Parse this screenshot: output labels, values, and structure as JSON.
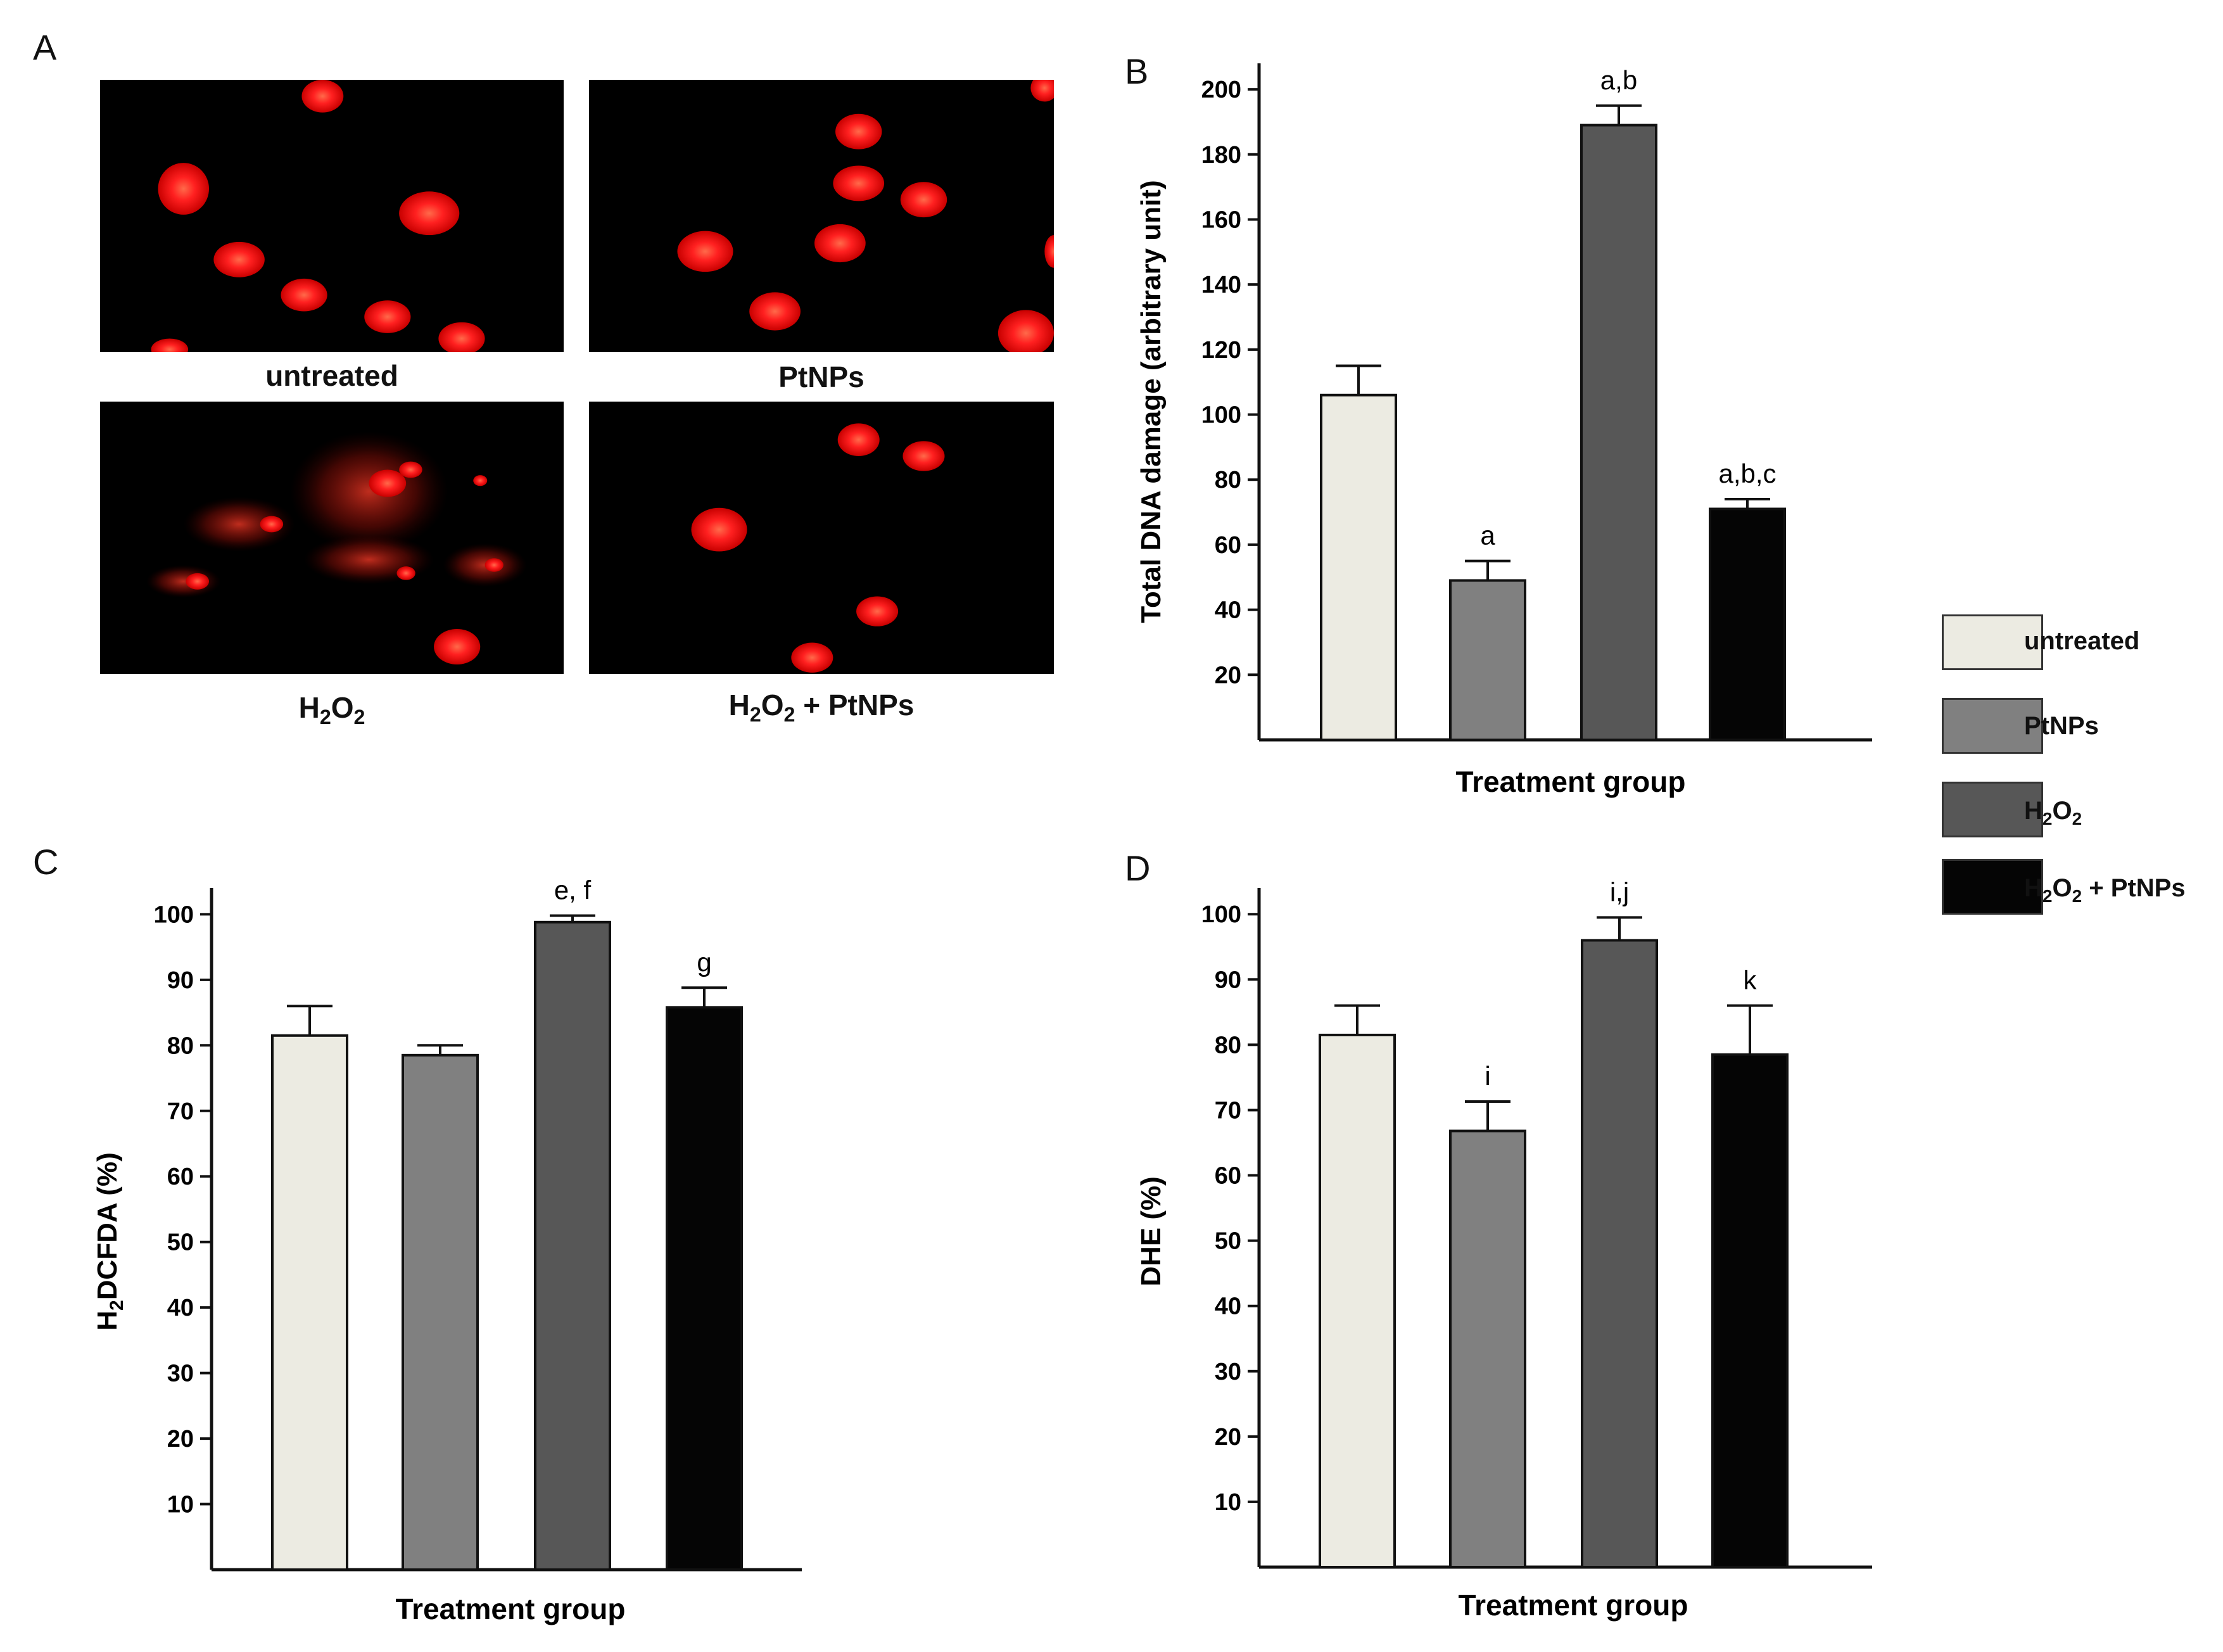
{
  "panels": {
    "A": "A",
    "B": "B",
    "C": "C",
    "D": "D"
  },
  "micrographs": [
    {
      "label": "untreated"
    },
    {
      "label": "PtNPs"
    },
    {
      "label_parts": [
        "H",
        "2",
        "O",
        "2"
      ]
    },
    {
      "label_parts": [
        "H",
        "2",
        "O",
        "2",
        " + PtNPs"
      ]
    }
  ],
  "colors": {
    "untreated": "#ecebe2",
    "PtNPs": "#808080",
    "H2O2": "#575757",
    "H2O2_PtNPs": "#050505",
    "nucleus": "#ff1a1a"
  },
  "legend": [
    {
      "label": "untreated",
      "color": "#ecebe2"
    },
    {
      "label": "PtNPs",
      "color": "#808080"
    },
    {
      "label_parts": [
        "H",
        "2",
        "O",
        "2"
      ],
      "color": "#575757"
    },
    {
      "label_parts": [
        "H",
        "2",
        "O",
        "2",
        " + PtNPs"
      ],
      "color": "#050505"
    }
  ],
  "chart_data": [
    {
      "id": "B",
      "type": "bar",
      "categories": [
        "untreated",
        "PtNPs",
        "H2O2",
        "H2O2 + PtNPs"
      ],
      "values": [
        106,
        49,
        189,
        71
      ],
      "errors": [
        9,
        6,
        6,
        3
      ],
      "annotations": [
        "",
        "a",
        "a,b",
        "a,b,c"
      ],
      "ylabel": "Total DNA damage (arbitrary unit)",
      "xlabel": "Treatment group",
      "ylim": [
        0,
        208
      ],
      "yticks": [
        20,
        40,
        60,
        80,
        100,
        120,
        140,
        160,
        180,
        200
      ]
    },
    {
      "id": "C",
      "type": "bar",
      "categories": [
        "untreated",
        "PtNPs",
        "H2O2",
        "H2O2 + PtNPs"
      ],
      "values": [
        81.5,
        78.5,
        98.8,
        85.8
      ],
      "errors": [
        4.5,
        1.5,
        1,
        3
      ],
      "annotations": [
        "",
        "",
        "e, f",
        "g"
      ],
      "ylabel_parts": [
        "H",
        "2",
        "DCFDA (%)"
      ],
      "xlabel": "Treatment group",
      "ylim": [
        0,
        104
      ],
      "yticks": [
        10,
        20,
        30,
        40,
        50,
        60,
        70,
        80,
        90,
        100
      ]
    },
    {
      "id": "D",
      "type": "bar",
      "categories": [
        "untreated",
        "PtNPs",
        "H2O2",
        "H2O2 + PtNPs"
      ],
      "values": [
        81.5,
        66.8,
        96,
        78.5
      ],
      "errors": [
        4.5,
        4.5,
        3.5,
        7.5
      ],
      "annotations": [
        "",
        "i",
        "i,j",
        "k"
      ],
      "ylabel": "DHE (%)",
      "xlabel": "Treatment group",
      "ylim": [
        0,
        104
      ],
      "yticks": [
        10,
        20,
        30,
        40,
        50,
        60,
        70,
        80,
        90,
        100
      ]
    }
  ]
}
